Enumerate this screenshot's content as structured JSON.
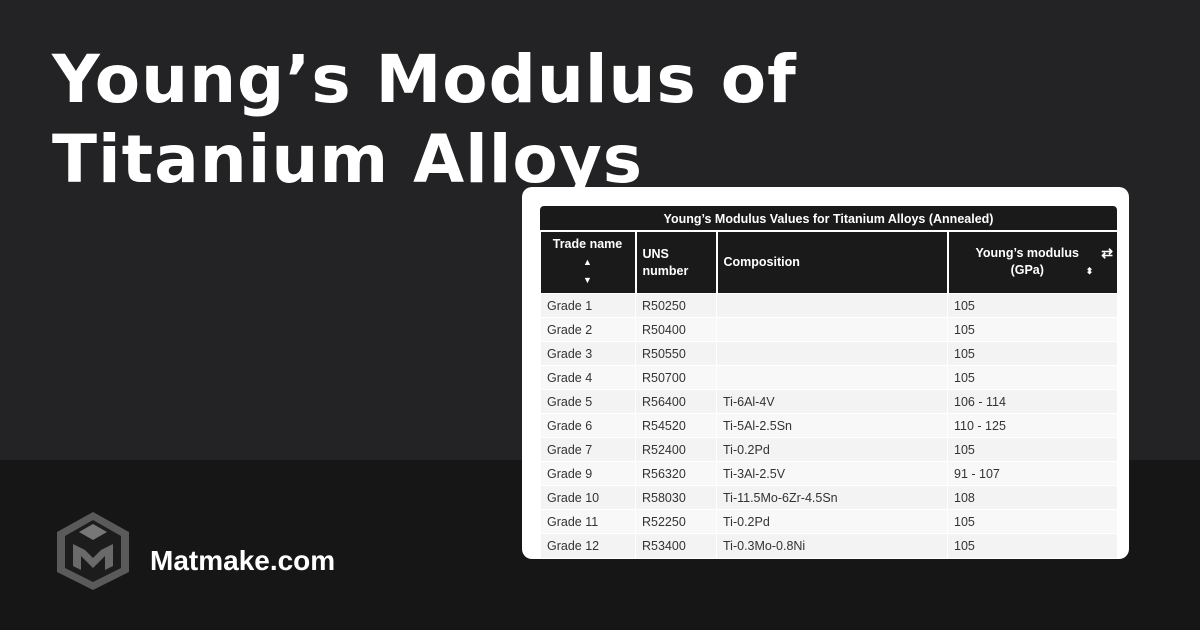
{
  "page": {
    "title": "Young’s Modulus of Titanium Alloys",
    "brand": "Matmake.com"
  },
  "table": {
    "caption": "Young’s Modulus Values for Titanium Alloys (Annealed)",
    "headers": [
      "Trade name",
      "UNS number",
      "Composition",
      "Young’s modulus (GPa)"
    ],
    "rows": [
      [
        "Grade 1",
        "R50250",
        "",
        "105"
      ],
      [
        "Grade 2",
        "R50400",
        "",
        "105"
      ],
      [
        "Grade 3",
        "R50550",
        "",
        "105"
      ],
      [
        "Grade 4",
        "R50700",
        "",
        "105"
      ],
      [
        "Grade 5",
        "R56400",
        "Ti-6Al-4V",
        "106 - 114"
      ],
      [
        "Grade 6",
        "R54520",
        "Ti-5Al-2.5Sn",
        "110 - 125"
      ],
      [
        "Grade 7",
        "R52400",
        "Ti-0.2Pd",
        "105"
      ],
      [
        "Grade 9",
        "R56320",
        "Ti-3Al-2.5V",
        "91 - 107"
      ],
      [
        "Grade 10",
        "R58030",
        "Ti-11.5Mo-6Zr-4.5Sn",
        "108"
      ],
      [
        "Grade 11",
        "R52250",
        "Ti-0.2Pd",
        "105"
      ],
      [
        "Grade 12",
        "R53400",
        "Ti-0.3Mo-0.8Ni",
        "105"
      ]
    ]
  },
  "icons": {
    "sort": "sort-up-down-icon",
    "swap": "swap-arrows-icon",
    "logo": "matmake-cube-logo"
  }
}
